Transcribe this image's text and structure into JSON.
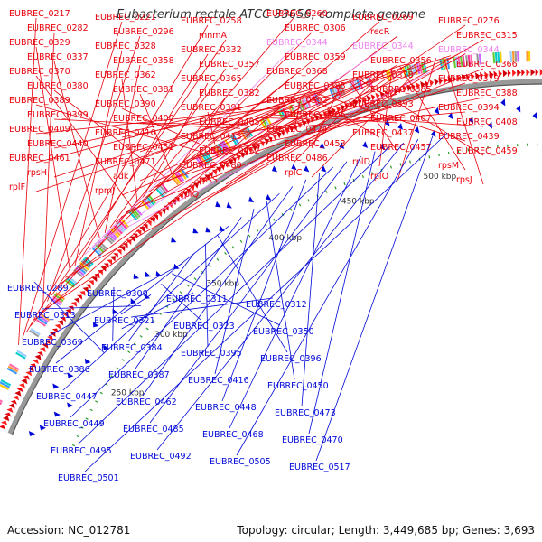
{
  "map": {
    "title": "Eubacterium rectale ATCC 33656, complete genome",
    "accession_label": "Accession: NC_012781",
    "summary_label": "Topology: circular; Length: 3,449,685 bp; Genes: 3,693",
    "colors": {
      "forward_gene": "#e8000b",
      "reverse_gene": "#0008d8",
      "rna_gene": "#ee82ee",
      "backbone": "#999999",
      "ruler_tick": "#2a9a2a",
      "ruler_text": "#333333"
    },
    "ruler_ticks": [
      "250 kbp",
      "300 kbp",
      "350 kbp",
      "400 kbp",
      "450 kbp",
      "500 kbp"
    ],
    "forward_labels": [
      {
        "text": "EUBREC_0217",
        "tone": "red"
      },
      {
        "text": "EUBREC_0221",
        "tone": "red"
      },
      {
        "text": "EUBREC_0258",
        "tone": "red"
      },
      {
        "text": "EUBREC_0260",
        "tone": "red"
      },
      {
        "text": "EUBREC_0269",
        "tone": "red"
      },
      {
        "text": "EUBREC_0276",
        "tone": "red"
      },
      {
        "text": "EUBREC_0282",
        "tone": "red"
      },
      {
        "text": "EUBREC_0296",
        "tone": "red"
      },
      {
        "text": "mnmA",
        "tone": "red"
      },
      {
        "text": "EUBREC_0306",
        "tone": "red"
      },
      {
        "text": "recR",
        "tone": "red"
      },
      {
        "text": "EUBREC_0315",
        "tone": "red"
      },
      {
        "text": "EUBREC_0329",
        "tone": "red"
      },
      {
        "text": "EUBREC_0328",
        "tone": "red"
      },
      {
        "text": "EUBREC_0332",
        "tone": "red"
      },
      {
        "text": "EUBREC_0344",
        "tone": "pink"
      },
      {
        "text": "EUBREC_0344",
        "tone": "pink"
      },
      {
        "text": "EUBREC_0344",
        "tone": "pink"
      },
      {
        "text": "EUBREC_0337",
        "tone": "red"
      },
      {
        "text": "EUBREC_0358",
        "tone": "red"
      },
      {
        "text": "EUBREC_0357",
        "tone": "red"
      },
      {
        "text": "EUBREC_0359",
        "tone": "red"
      },
      {
        "text": "EUBREC_0356",
        "tone": "red"
      },
      {
        "text": "EUBREC_0366",
        "tone": "red"
      },
      {
        "text": "EUBREC_0370",
        "tone": "red"
      },
      {
        "text": "EUBREC_0362",
        "tone": "red"
      },
      {
        "text": "EUBREC_0365",
        "tone": "red"
      },
      {
        "text": "EUBREC_0368",
        "tone": "red"
      },
      {
        "text": "EUBREC_0378",
        "tone": "red"
      },
      {
        "text": "EUBREC_0379",
        "tone": "red"
      },
      {
        "text": "EUBREC_0380",
        "tone": "red"
      },
      {
        "text": "EUBREC_0381",
        "tone": "red"
      },
      {
        "text": "EUBREC_0382",
        "tone": "red"
      },
      {
        "text": "EUBREC_0383",
        "tone": "red"
      },
      {
        "text": "EUBREC_0385",
        "tone": "red"
      },
      {
        "text": "EUBREC_0388",
        "tone": "red"
      },
      {
        "text": "EUBREC_0389",
        "tone": "red"
      },
      {
        "text": "EUBREC_0390",
        "tone": "red"
      },
      {
        "text": "EUBREC_0391",
        "tone": "red"
      },
      {
        "text": "EUBREC_0392",
        "tone": "red"
      },
      {
        "text": "EUBREC_0393",
        "tone": "red"
      },
      {
        "text": "EUBREC_0394",
        "tone": "red"
      },
      {
        "text": "EUBREC_0399",
        "tone": "red"
      },
      {
        "text": "EUBREC_0400",
        "tone": "red"
      },
      {
        "text": "EUBREC_0405",
        "tone": "red"
      },
      {
        "text": "EUBREC_0406",
        "tone": "red"
      },
      {
        "text": "EUBREC_0407",
        "tone": "red"
      },
      {
        "text": "EUBREC_0408",
        "tone": "red"
      },
      {
        "text": "EUBREC_0409",
        "tone": "red"
      },
      {
        "text": "EUBREC_0410",
        "tone": "red"
      },
      {
        "text": "EUBREC_0413",
        "tone": "red"
      },
      {
        "text": "EUBREC_0424",
        "tone": "red"
      },
      {
        "text": "EUBREC_0437",
        "tone": "red"
      },
      {
        "text": "EUBREC_0439",
        "tone": "red"
      },
      {
        "text": "EUBREC_0440",
        "tone": "red"
      },
      {
        "text": "EUBREC_0451",
        "tone": "red"
      },
      {
        "text": "EUBREC_0452",
        "tone": "red"
      },
      {
        "text": "EUBREC_0453",
        "tone": "red"
      },
      {
        "text": "EUBREC_0457",
        "tone": "red"
      },
      {
        "text": "EUBREC_0459",
        "tone": "red"
      },
      {
        "text": "EUBREC_0461",
        "tone": "red"
      },
      {
        "text": "EUBREC_0471",
        "tone": "red"
      },
      {
        "text": "EUBREC_0480",
        "tone": "red"
      },
      {
        "text": "EUBREC_0486",
        "tone": "red"
      },
      {
        "text": "rplD",
        "tone": "red"
      },
      {
        "text": "rpsM",
        "tone": "red"
      },
      {
        "text": "rpsH",
        "tone": "red"
      },
      {
        "text": "adk",
        "tone": "red"
      },
      {
        "text": "rpsS",
        "tone": "red"
      },
      {
        "text": "rplC",
        "tone": "red"
      },
      {
        "text": "rplO",
        "tone": "red"
      },
      {
        "text": "rpsJ",
        "tone": "red"
      },
      {
        "text": "rplF",
        "tone": "red"
      },
      {
        "text": "rpmJ",
        "tone": "red"
      },
      {
        "text": "rplQ",
        "tone": "red"
      }
    ],
    "reverse_labels": [
      "EUBREC_0289",
      "EUBREC_0300",
      "EUBREC_0311",
      "EUBREC_0312",
      "EUBREC_0313",
      "EUBREC_0321",
      "EUBREC_0323",
      "EUBREC_0350",
      "EUBREC_0369",
      "EUBREC_0384",
      "EUBREC_0395",
      "EUBREC_0396",
      "EUBREC_0386",
      "EUBREC_0387",
      "EUBREC_0416",
      "EUBREC_0450",
      "EUBREC_0447",
      "EUBREC_0462",
      "EUBREC_0448",
      "EUBREC_0473",
      "EUBREC_0449",
      "EUBREC_0485",
      "EUBREC_0468",
      "EUBREC_0470",
      "EUBREC_0495",
      "EUBREC_0492",
      "EUBREC_0505",
      "EUBREC_0517",
      "EUBREC_0501"
    ]
  }
}
